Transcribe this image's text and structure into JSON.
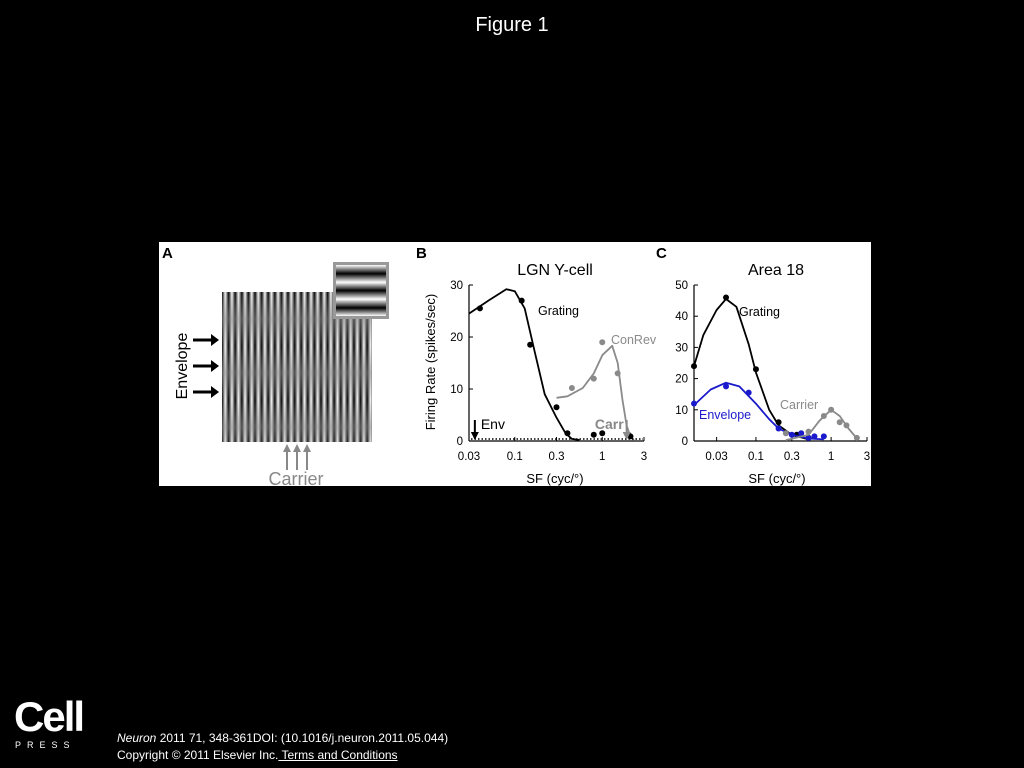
{
  "slide": {
    "title": "Figure 1",
    "journal": "Neuron",
    "citation_rest": " 2011 71, 348-361DOI: (10.1016/j.neuron.2011.05.044)",
    "copyright": "Copyright © 2011 Elsevier Inc.",
    "terms_link": " Terms and Conditions",
    "logo_word": "Cell",
    "logo_sub": "PRESS"
  },
  "colors": {
    "grating": "#000000",
    "secondary": "#8a8a8a",
    "envelope": "#1a1acc"
  },
  "panel_a": {
    "letter": "A",
    "envelope_label": "Envelope",
    "carrier_label": "Carrier"
  },
  "chart_data": [
    {
      "type": "line",
      "panel": "B",
      "title": "LGN Y-cell",
      "xlabel": "SF (cyc/°)",
      "ylabel": "Firing Rate (spikes/sec)",
      "x_scale": "log",
      "xlim": [
        0.03,
        3
      ],
      "ylim": [
        0,
        30
      ],
      "xticks": [
        0.03,
        0.1,
        0.3,
        1,
        3
      ],
      "xtick_labels": [
        "0.03",
        "0.1",
        "0.3",
        "1",
        "3"
      ],
      "yticks": [
        0,
        10,
        20,
        30
      ],
      "ytick_labels": [
        "0",
        "10",
        "20",
        "30"
      ],
      "arrows": [
        {
          "label": "Env",
          "x": 0.035
        },
        {
          "label": "Carr",
          "x": 1.9
        }
      ],
      "series": [
        {
          "name": "Grating",
          "color": "#000000",
          "points": [
            [
              0.04,
              25.5
            ],
            [
              0.12,
              27
            ],
            [
              0.15,
              18.5
            ],
            [
              0.3,
              6.5
            ],
            [
              0.4,
              1.5
            ]
          ],
          "curve": [
            [
              0.03,
              24.5
            ],
            [
              0.05,
              27
            ],
            [
              0.08,
              29.2
            ],
            [
              0.1,
              28.8
            ],
            [
              0.13,
              25.5
            ],
            [
              0.17,
              17
            ],
            [
              0.22,
              9
            ],
            [
              0.3,
              4.5
            ],
            [
              0.38,
              1.5
            ],
            [
              0.45,
              0.4
            ],
            [
              0.55,
              0.2
            ]
          ]
        },
        {
          "name": "ConRev",
          "color": "#8a8a8a",
          "points": [
            [
              0.45,
              10.2
            ],
            [
              0.8,
              12
            ],
            [
              1,
              19
            ],
            [
              1.5,
              13
            ],
            [
              2,
              1.2
            ]
          ],
          "curve": [
            [
              0.3,
              8.3
            ],
            [
              0.4,
              8.6
            ],
            [
              0.6,
              10.2
            ],
            [
              0.8,
              13
            ],
            [
              1.0,
              16.5
            ],
            [
              1.3,
              18.3
            ],
            [
              1.5,
              15
            ],
            [
              1.7,
              8
            ],
            [
              1.9,
              3
            ],
            [
              2.1,
              0.8
            ],
            [
              2.3,
              0.2
            ]
          ]
        },
        {
          "name": "",
          "color": "#000000",
          "points": [
            [
              0.8,
              1.2
            ],
            [
              1.0,
              1.5
            ],
            [
              2.1,
              0.9
            ]
          ],
          "curve": []
        }
      ]
    },
    {
      "type": "line",
      "panel": "C",
      "title": "Area 18",
      "xlabel": "SF (cyc/°)",
      "ylabel": "",
      "x_scale": "log",
      "xlim": [
        0.015,
        3
      ],
      "ylim": [
        0,
        50
      ],
      "xticks": [
        0.03,
        0.1,
        0.3,
        1,
        3
      ],
      "xtick_labels": [
        "0.03",
        "0.1",
        "0.3",
        "1",
        "3"
      ],
      "yticks": [
        0,
        10,
        20,
        30,
        40,
        50
      ],
      "ytick_labels": [
        "0",
        "10",
        "20",
        "30",
        "40",
        "50"
      ],
      "series": [
        {
          "name": "Grating",
          "color": "#000000",
          "points": [
            [
              0.015,
              24
            ],
            [
              0.04,
              46
            ],
            [
              0.1,
              23
            ],
            [
              0.2,
              6
            ],
            [
              0.35,
              2
            ],
            [
              0.5,
              1
            ]
          ],
          "curve": [
            [
              0.015,
              24
            ],
            [
              0.02,
              34
            ],
            [
              0.03,
              42
            ],
            [
              0.04,
              45.5
            ],
            [
              0.055,
              43
            ],
            [
              0.08,
              31
            ],
            [
              0.1,
              22
            ],
            [
              0.15,
              10
            ],
            [
              0.2,
              5
            ],
            [
              0.3,
              2
            ],
            [
              0.5,
              0.5
            ]
          ]
        },
        {
          "name": "Envelope",
          "color": "#1a1acc",
          "points": [
            [
              0.015,
              12
            ],
            [
              0.04,
              17.5
            ],
            [
              0.08,
              15.5
            ],
            [
              0.2,
              4
            ],
            [
              0.3,
              2
            ],
            [
              0.4,
              2.5
            ],
            [
              0.5,
              1
            ],
            [
              0.6,
              1.5
            ],
            [
              0.8,
              1.5
            ]
          ],
          "curve": [
            [
              0.015,
              11.5
            ],
            [
              0.025,
              16.5
            ],
            [
              0.04,
              18.7
            ],
            [
              0.06,
              17.5
            ],
            [
              0.1,
              12
            ],
            [
              0.15,
              7
            ],
            [
              0.2,
              4
            ],
            [
              0.3,
              2
            ],
            [
              0.5,
              0.8
            ],
            [
              0.8,
              0.5
            ]
          ]
        },
        {
          "name": "Carrier",
          "color": "#8a8a8a",
          "points": [
            [
              0.25,
              2.5
            ],
            [
              0.5,
              3
            ],
            [
              0.8,
              8
            ],
            [
              1.0,
              10
            ],
            [
              1.3,
              6
            ],
            [
              1.6,
              5
            ],
            [
              2.2,
              1
            ]
          ],
          "curve": [
            [
              0.25,
              0.3
            ],
            [
              0.5,
              2
            ],
            [
              0.7,
              6.5
            ],
            [
              1.0,
              10
            ],
            [
              1.3,
              8
            ],
            [
              1.7,
              4
            ],
            [
              2.2,
              0.8
            ]
          ]
        }
      ]
    }
  ]
}
